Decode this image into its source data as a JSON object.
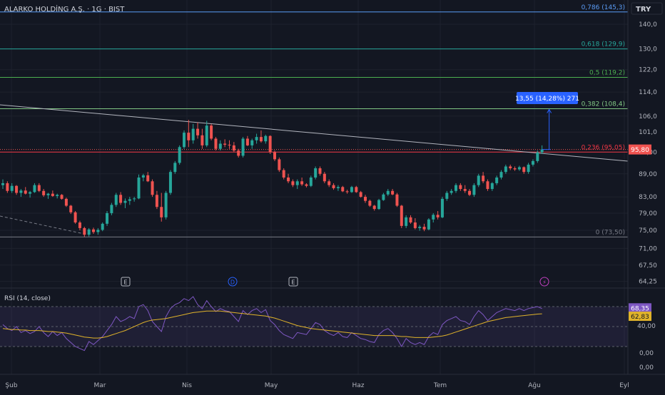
{
  "header": {
    "title": "ALARKO HOLDİNG A.Ş. · 1G · BIST"
  },
  "currency": "TRY",
  "colors": {
    "background": "#131722",
    "up": "#26a69a",
    "down": "#ef5350",
    "rsi_line": "#7e57c2",
    "rsi_ma": "#e0b32a",
    "fib_786": "#5b9cf6",
    "fib_618": "#26a69a",
    "fib_5": "#4caf50",
    "fib_382": "#81c784",
    "fib_236": "#f23645",
    "fib_0": "#787b86",
    "trendline": "#b2b5be",
    "measure": "#2962ff"
  },
  "chart_data": [
    {
      "type": "candlestick",
      "title": "ALARKO HOLDİNG A.Ş. · 1G · BIST",
      "y_axis": {
        "scale": "log",
        "ticks": [
          "140,0",
          "130,0",
          "122,0",
          "114,0",
          "106,0",
          "101,0",
          "95,00",
          "89,00",
          "83,00",
          "79,00",
          "75,00",
          "71,00",
          "67,50",
          "64,25"
        ],
        "tick_values": [
          140,
          130,
          122,
          114,
          106,
          101,
          95,
          89,
          83,
          79,
          75,
          71,
          67.5,
          64.25
        ]
      },
      "x_axis": {
        "labels": [
          "Şub",
          "Mar",
          "Nis",
          "May",
          "Haz",
          "Tem",
          "Ağu",
          "Eyl"
        ]
      },
      "last_price": "95,80",
      "last_price_value": 95.8,
      "candles": [
        {
          "o": 86,
          "h": 87.5,
          "l": 85,
          "c": 86.5
        },
        {
          "o": 86.5,
          "h": 87,
          "l": 84,
          "c": 84.5
        },
        {
          "o": 84.5,
          "h": 86.5,
          "l": 84,
          "c": 85.8
        },
        {
          "o": 85.8,
          "h": 86,
          "l": 83.5,
          "c": 84
        },
        {
          "o": 84,
          "h": 85,
          "l": 83,
          "c": 84.6
        },
        {
          "o": 84.6,
          "h": 85.5,
          "l": 83.6,
          "c": 83.8
        },
        {
          "o": 83.8,
          "h": 84.5,
          "l": 82.8,
          "c": 84.2
        },
        {
          "o": 84.2,
          "h": 86.5,
          "l": 84,
          "c": 86
        },
        {
          "o": 86,
          "h": 86.5,
          "l": 84.2,
          "c": 84.5
        },
        {
          "o": 84.5,
          "h": 85,
          "l": 83,
          "c": 83.4
        },
        {
          "o": 83.4,
          "h": 84,
          "l": 82.5,
          "c": 83.8
        },
        {
          "o": 83.8,
          "h": 84.6,
          "l": 83,
          "c": 83.2
        },
        {
          "o": 83.2,
          "h": 83.8,
          "l": 82.6,
          "c": 83.5
        },
        {
          "o": 83.5,
          "h": 83.7,
          "l": 82.3,
          "c": 82.5
        },
        {
          "o": 82.5,
          "h": 82.8,
          "l": 80.5,
          "c": 80.8
        },
        {
          "o": 80.8,
          "h": 81,
          "l": 78.8,
          "c": 79.2
        },
        {
          "o": 79.2,
          "h": 79.5,
          "l": 76.5,
          "c": 76.8
        },
        {
          "o": 76.8,
          "h": 77.2,
          "l": 75,
          "c": 75.5
        },
        {
          "o": 75.5,
          "h": 75.8,
          "l": 73.5,
          "c": 74
        },
        {
          "o": 74,
          "h": 75.5,
          "l": 73.6,
          "c": 75.2
        },
        {
          "o": 75.2,
          "h": 75.6,
          "l": 74.2,
          "c": 74.6
        },
        {
          "o": 74.6,
          "h": 75.5,
          "l": 74,
          "c": 75.1
        },
        {
          "o": 75.1,
          "h": 76.8,
          "l": 74.8,
          "c": 76.5
        },
        {
          "o": 76.5,
          "h": 79.5,
          "l": 76,
          "c": 79
        },
        {
          "o": 79,
          "h": 81.5,
          "l": 78.5,
          "c": 81
        },
        {
          "o": 81,
          "h": 84,
          "l": 80.5,
          "c": 83.5
        },
        {
          "o": 83.5,
          "h": 84.2,
          "l": 81,
          "c": 81.5
        },
        {
          "o": 81.5,
          "h": 82.6,
          "l": 80.2,
          "c": 82
        },
        {
          "o": 82,
          "h": 83,
          "l": 81,
          "c": 82.4
        },
        {
          "o": 82.4,
          "h": 83,
          "l": 81.8,
          "c": 82.6
        },
        {
          "o": 82.6,
          "h": 88.8,
          "l": 82.4,
          "c": 88
        },
        {
          "o": 88,
          "h": 89,
          "l": 87,
          "c": 88.6
        },
        {
          "o": 88.6,
          "h": 89.5,
          "l": 86.8,
          "c": 87
        },
        {
          "o": 87,
          "h": 87.5,
          "l": 83,
          "c": 83.5
        },
        {
          "o": 83.5,
          "h": 84.5,
          "l": 80,
          "c": 80.5
        },
        {
          "o": 80.5,
          "h": 84,
          "l": 77,
          "c": 78
        },
        {
          "o": 78,
          "h": 84.5,
          "l": 77.5,
          "c": 84
        },
        {
          "o": 84,
          "h": 90,
          "l": 83.5,
          "c": 89.5
        },
        {
          "o": 89.5,
          "h": 92.5,
          "l": 89,
          "c": 92
        },
        {
          "o": 92,
          "h": 97,
          "l": 91.5,
          "c": 96.5
        },
        {
          "o": 96.5,
          "h": 101.5,
          "l": 96,
          "c": 100.8
        },
        {
          "o": 100.8,
          "h": 104.8,
          "l": 96.5,
          "c": 98.5
        },
        {
          "o": 98.5,
          "h": 103.5,
          "l": 97.5,
          "c": 102
        },
        {
          "o": 102,
          "h": 104,
          "l": 99,
          "c": 100
        },
        {
          "o": 100,
          "h": 102,
          "l": 96,
          "c": 97
        },
        {
          "o": 97,
          "h": 104.5,
          "l": 96.5,
          "c": 103
        },
        {
          "o": 103,
          "h": 103.5,
          "l": 98.5,
          "c": 99
        },
        {
          "o": 99,
          "h": 99.5,
          "l": 95.5,
          "c": 96
        },
        {
          "o": 96,
          "h": 98.5,
          "l": 95.5,
          "c": 97.5
        },
        {
          "o": 97.5,
          "h": 98.8,
          "l": 96.5,
          "c": 97.2
        },
        {
          "o": 97.2,
          "h": 98.5,
          "l": 96,
          "c": 97
        },
        {
          "o": 97,
          "h": 98,
          "l": 95,
          "c": 95.5
        },
        {
          "o": 95.5,
          "h": 96,
          "l": 93.5,
          "c": 94
        },
        {
          "o": 94,
          "h": 99.5,
          "l": 93.5,
          "c": 99
        },
        {
          "o": 99,
          "h": 99.8,
          "l": 96.8,
          "c": 97
        },
        {
          "o": 97,
          "h": 99,
          "l": 96,
          "c": 98.5
        },
        {
          "o": 98.5,
          "h": 100.5,
          "l": 97.5,
          "c": 99.5
        },
        {
          "o": 99.5,
          "h": 101.5,
          "l": 97.8,
          "c": 98.2
        },
        {
          "o": 98.2,
          "h": 100.2,
          "l": 97.5,
          "c": 99.8
        },
        {
          "o": 99.8,
          "h": 100,
          "l": 94.5,
          "c": 95
        },
        {
          "o": 95,
          "h": 95.5,
          "l": 92.5,
          "c": 93
        },
        {
          "o": 93,
          "h": 93.5,
          "l": 89.5,
          "c": 90
        },
        {
          "o": 90,
          "h": 90.5,
          "l": 87.5,
          "c": 88
        },
        {
          "o": 88,
          "h": 89,
          "l": 86.5,
          "c": 87
        },
        {
          "o": 87,
          "h": 87.5,
          "l": 85.5,
          "c": 86
        },
        {
          "o": 86,
          "h": 87.5,
          "l": 85,
          "c": 87
        },
        {
          "o": 87,
          "h": 88,
          "l": 85.8,
          "c": 86.2
        },
        {
          "o": 86.2,
          "h": 86.5,
          "l": 85.4,
          "c": 85.8
        },
        {
          "o": 85.8,
          "h": 88.5,
          "l": 85.5,
          "c": 88
        },
        {
          "o": 88,
          "h": 91,
          "l": 87.5,
          "c": 90.5
        },
        {
          "o": 90.5,
          "h": 91,
          "l": 88.5,
          "c": 89
        },
        {
          "o": 89,
          "h": 89.5,
          "l": 86.5,
          "c": 87
        },
        {
          "o": 87,
          "h": 87.5,
          "l": 85.5,
          "c": 86
        },
        {
          "o": 86,
          "h": 86.5,
          "l": 84.8,
          "c": 85.2
        },
        {
          "o": 85.2,
          "h": 86,
          "l": 84.5,
          "c": 85.5
        },
        {
          "o": 85.5,
          "h": 85.8,
          "l": 84.2,
          "c": 84.4
        },
        {
          "o": 84.4,
          "h": 84.8,
          "l": 83.8,
          "c": 84.2
        },
        {
          "o": 84.2,
          "h": 85.8,
          "l": 84,
          "c": 85.5
        },
        {
          "o": 85.5,
          "h": 85.8,
          "l": 84,
          "c": 84.2
        },
        {
          "o": 84.2,
          "h": 84.5,
          "l": 82.8,
          "c": 83
        },
        {
          "o": 83,
          "h": 83.5,
          "l": 81.5,
          "c": 82
        },
        {
          "o": 82,
          "h": 82.3,
          "l": 80.5,
          "c": 80.8
        },
        {
          "o": 80.8,
          "h": 81,
          "l": 79.6,
          "c": 80
        },
        {
          "o": 80,
          "h": 82.5,
          "l": 79.8,
          "c": 82.2
        },
        {
          "o": 82.2,
          "h": 84,
          "l": 82,
          "c": 83.6
        },
        {
          "o": 83.6,
          "h": 85,
          "l": 83.2,
          "c": 84.5
        },
        {
          "o": 84.5,
          "h": 85,
          "l": 83.4,
          "c": 83.6
        },
        {
          "o": 83.6,
          "h": 84,
          "l": 80.5,
          "c": 80.8
        },
        {
          "o": 80.8,
          "h": 81,
          "l": 75.5,
          "c": 76
        },
        {
          "o": 76,
          "h": 78.5,
          "l": 75.5,
          "c": 78
        },
        {
          "o": 78,
          "h": 78.5,
          "l": 76.5,
          "c": 76.8
        },
        {
          "o": 76.8,
          "h": 77.8,
          "l": 75.2,
          "c": 75.5
        },
        {
          "o": 75.5,
          "h": 76.2,
          "l": 74.9,
          "c": 75.8
        },
        {
          "o": 75.8,
          "h": 76.5,
          "l": 74.8,
          "c": 75.2
        },
        {
          "o": 75.2,
          "h": 77.8,
          "l": 75,
          "c": 77.5
        },
        {
          "o": 77.5,
          "h": 79,
          "l": 76.8,
          "c": 78.6
        },
        {
          "o": 78.6,
          "h": 79.5,
          "l": 77.5,
          "c": 78
        },
        {
          "o": 78,
          "h": 83,
          "l": 77.8,
          "c": 82.5
        },
        {
          "o": 82.5,
          "h": 84.5,
          "l": 82,
          "c": 84
        },
        {
          "o": 84,
          "h": 85,
          "l": 83.5,
          "c": 84.5
        },
        {
          "o": 84.5,
          "h": 86.5,
          "l": 84,
          "c": 86
        },
        {
          "o": 86,
          "h": 86.5,
          "l": 84.5,
          "c": 85
        },
        {
          "o": 85,
          "h": 86,
          "l": 84,
          "c": 84.5
        },
        {
          "o": 84.5,
          "h": 85,
          "l": 83.2,
          "c": 83.5
        },
        {
          "o": 83.5,
          "h": 86.5,
          "l": 83,
          "c": 86
        },
        {
          "o": 86,
          "h": 89,
          "l": 85.5,
          "c": 88.5
        },
        {
          "o": 88.5,
          "h": 89.5,
          "l": 86.5,
          "c": 87
        },
        {
          "o": 87,
          "h": 87.5,
          "l": 84.5,
          "c": 85
        },
        {
          "o": 85,
          "h": 86.8,
          "l": 84.5,
          "c": 86.5
        },
        {
          "o": 86.5,
          "h": 88.5,
          "l": 86,
          "c": 88
        },
        {
          "o": 88,
          "h": 90,
          "l": 87.5,
          "c": 89.5
        },
        {
          "o": 89.5,
          "h": 91.5,
          "l": 89,
          "c": 91
        },
        {
          "o": 91,
          "h": 91.5,
          "l": 90,
          "c": 90.5
        },
        {
          "o": 90.5,
          "h": 91,
          "l": 89.8,
          "c": 90.2
        },
        {
          "o": 90.2,
          "h": 91.2,
          "l": 89.8,
          "c": 90.8
        },
        {
          "o": 90.8,
          "h": 91,
          "l": 89,
          "c": 89.5
        },
        {
          "o": 89.5,
          "h": 92,
          "l": 89,
          "c": 91.5
        },
        {
          "o": 91.5,
          "h": 93,
          "l": 91,
          "c": 92.5
        },
        {
          "o": 92.5,
          "h": 95.5,
          "l": 92,
          "c": 95
        },
        {
          "o": 95,
          "h": 97,
          "l": 94.5,
          "c": 95.8
        }
      ],
      "fibonacci": [
        {
          "label": "0,786 (145,3)",
          "price": 145.3,
          "color_key": "fib_786"
        },
        {
          "label": "0,618 (129,9)",
          "price": 129.9,
          "color_key": "fib_618"
        },
        {
          "label": "0,5 (119,2)",
          "price": 119.2,
          "color_key": "fib_5"
        },
        {
          "label": "0,382 (108,4)",
          "price": 108.4,
          "color_key": "fib_382"
        },
        {
          "label": "0,236 (95,05)",
          "price": 95.05,
          "color_key": "fib_236"
        },
        {
          "label": "0 (73,50)",
          "price": 73.5,
          "color_key": "fib_0"
        }
      ],
      "measure_label": "13,55 (14,28%) 271",
      "event_markers": [
        "E",
        "D",
        "E",
        "⚡"
      ]
    },
    {
      "type": "line",
      "title": "RSI (14, close)",
      "y_axis": {
        "ticks": [
          "40,00",
          "0,00",
          "0,00"
        ],
        "range": [
          20,
          80
        ]
      },
      "bands": [
        30,
        50,
        70
      ],
      "last_values": {
        "rsi": "68,35",
        "ma": "62,83"
      },
      "rsi_value": 68.35,
      "ma_value": 62.83,
      "series": [
        {
          "name": "RSI (14, close)",
          "values": [
            52,
            48,
            46,
            50,
            44,
            46,
            43,
            45,
            50,
            44,
            40,
            45,
            41,
            44,
            38,
            34,
            30,
            28,
            26,
            35,
            32,
            36,
            40,
            46,
            52,
            60,
            55,
            57,
            60,
            58,
            70,
            72,
            66,
            55,
            50,
            45,
            60,
            68,
            72,
            74,
            78,
            76,
            80,
            72,
            68,
            76,
            70,
            65,
            68,
            66,
            65,
            60,
            55,
            66,
            62,
            66,
            68,
            64,
            67,
            56,
            52,
            46,
            42,
            40,
            38,
            44,
            43,
            42,
            48,
            54,
            52,
            46,
            43,
            41,
            44,
            40,
            39,
            44,
            41,
            38,
            37,
            35,
            34,
            42,
            46,
            48,
            44,
            38,
            30,
            38,
            34,
            32,
            34,
            32,
            40,
            44,
            42,
            52,
            56,
            58,
            60,
            56,
            55,
            52,
            60,
            66,
            62,
            56,
            60,
            64,
            66,
            68,
            67,
            66,
            68,
            66,
            68,
            69,
            70,
            68
          ]
        },
        {
          "name": "MA",
          "values": [
            48,
            47.5,
            47,
            47,
            46.5,
            46.5,
            46,
            46,
            46,
            45.5,
            45,
            45,
            44.5,
            44,
            43.5,
            42.5,
            41.5,
            40.5,
            39.5,
            39,
            38.5,
            38.5,
            39,
            40,
            41.5,
            43,
            44.5,
            46,
            48,
            50,
            52,
            54,
            55.5,
            56.5,
            57,
            57.5,
            58,
            59,
            60,
            61,
            62,
            63,
            64,
            64.5,
            65,
            65.5,
            65.5,
            65.5,
            65.5,
            65,
            64.5,
            64,
            63.5,
            63,
            62.5,
            62,
            61.5,
            61,
            60.5,
            59.5,
            58.5,
            57,
            55.5,
            54,
            52.5,
            51,
            50,
            49,
            48,
            47.5,
            47,
            46.5,
            46,
            45.5,
            45,
            44.5,
            44,
            43.5,
            43,
            42.5,
            42,
            41.5,
            41,
            41,
            41,
            41,
            41,
            40.5,
            40,
            40,
            39.5,
            39,
            39,
            39,
            39,
            39.5,
            40,
            40.5,
            41.5,
            43,
            44.5,
            46,
            47.5,
            49,
            50.5,
            52,
            53.5,
            55,
            56,
            57,
            58,
            59,
            59.5,
            60,
            60.5,
            61,
            61.5,
            62,
            62.5,
            62.8
          ]
        }
      ]
    }
  ]
}
